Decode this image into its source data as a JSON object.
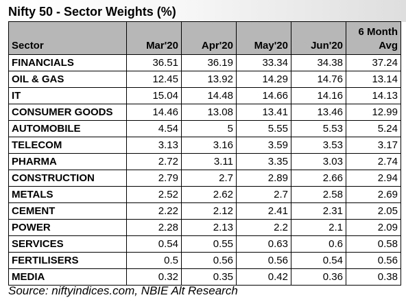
{
  "title": "Nifty 50 - Sector Weights (%)",
  "table": {
    "headers": {
      "sector": "Sector",
      "months": [
        "Mar'20",
        "Apr'20",
        "May'20",
        "Jun'20"
      ],
      "avg_line1": "6 Month",
      "avg_line2": "Avg"
    },
    "rows": [
      {
        "sector": "FINANCIALS",
        "values": [
          "36.51",
          "36.19",
          "33.34",
          "34.38",
          "37.24"
        ]
      },
      {
        "sector": "OIL & GAS",
        "values": [
          "12.45",
          "13.92",
          "14.29",
          "14.76",
          "13.14"
        ]
      },
      {
        "sector": "IT",
        "values": [
          "15.04",
          "14.48",
          "14.66",
          "14.16",
          "14.13"
        ]
      },
      {
        "sector": "CONSUMER GOODS",
        "values": [
          "14.46",
          "13.08",
          "13.41",
          "13.46",
          "12.99"
        ]
      },
      {
        "sector": "AUTOMOBILE",
        "values": [
          "4.54",
          "5",
          "5.55",
          "5.53",
          "5.24"
        ]
      },
      {
        "sector": "TELECOM",
        "values": [
          "3.13",
          "3.16",
          "3.59",
          "3.53",
          "3.17"
        ]
      },
      {
        "sector": "PHARMA",
        "values": [
          "2.72",
          "3.11",
          "3.35",
          "3.03",
          "2.74"
        ]
      },
      {
        "sector": "CONSTRUCTION",
        "values": [
          "2.79",
          "2.7",
          "2.89",
          "2.66",
          "2.94"
        ]
      },
      {
        "sector": "METALS",
        "values": [
          "2.52",
          "2.62",
          "2.7",
          "2.58",
          "2.69"
        ]
      },
      {
        "sector": "CEMENT",
        "values": [
          "2.22",
          "2.12",
          "2.41",
          "2.31",
          "2.05"
        ]
      },
      {
        "sector": "POWER",
        "values": [
          "2.28",
          "2.13",
          "2.2",
          "2.1",
          "2.09"
        ]
      },
      {
        "sector": "SERVICES",
        "values": [
          "0.54",
          "0.55",
          "0.63",
          "0.6",
          "0.58"
        ]
      },
      {
        "sector": "FERTILISERS",
        "values": [
          "0.5",
          "0.56",
          "0.56",
          "0.54",
          "0.56"
        ]
      },
      {
        "sector": "MEDIA",
        "values": [
          "0.32",
          "0.35",
          "0.42",
          "0.36",
          "0.38"
        ]
      }
    ]
  },
  "source": "Source: niftyindices.com, NBIE Alt Research",
  "colors": {
    "header_fill": "#b7b7b7",
    "border": "#000000",
    "title_band_end": "#dedede"
  }
}
